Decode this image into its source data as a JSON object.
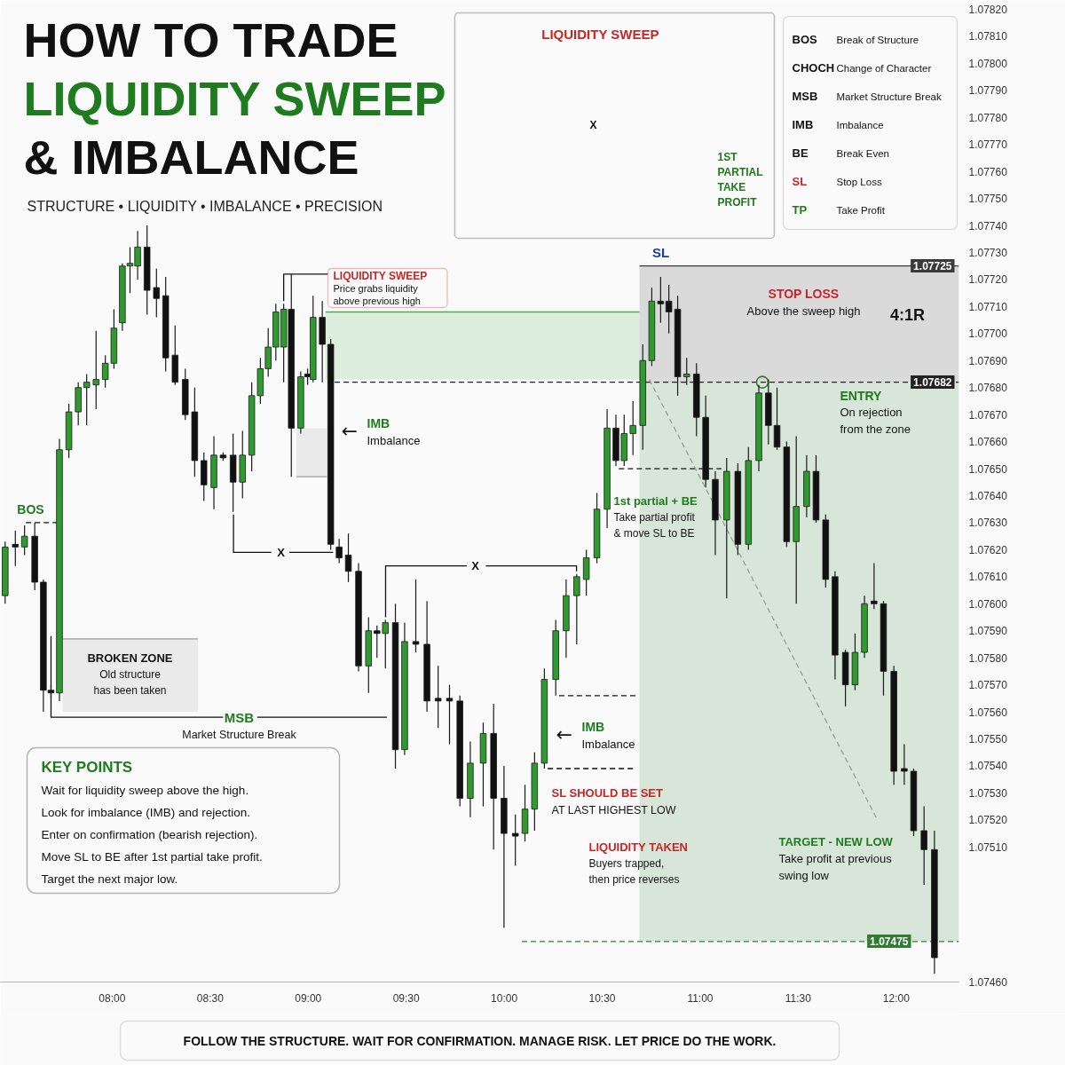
{
  "chart_data": {
    "type": "candlestick",
    "title": "HOW TO TRADE\nLIQUIDITY SWEEP\n& IMBALANCE",
    "subtitle": "STRUCTURE • LIQUIDITY • IMBALANCE • PRECISION",
    "x": [
      7.454,
      7.506,
      7.553,
      7.605,
      7.649,
      7.688,
      7.731,
      7.779,
      7.827,
      7.87,
      7.918,
      7.965,
      8.009,
      8.052,
      8.091,
      8.13,
      8.178,
      8.226,
      8.273,
      8.321,
      8.373,
      8.421,
      8.468,
      8.519,
      8.566,
      8.617,
      8.665,
      8.712,
      8.756,
      8.796,
      8.835,
      8.875,
      8.914,
      8.962,
      8.997,
      9.025,
      9.072,
      9.115,
      9.158,
      9.205,
      9.257,
      9.308,
      9.351,
      9.394,
      9.445,
      9.492,
      9.549,
      9.606,
      9.663,
      9.721,
      9.774,
      9.827,
      9.893,
      9.946,
      9.999,
      10.057,
      10.106,
      10.155,
      10.205,
      10.263,
      10.316,
      10.37,
      10.419,
      10.473,
      10.525,
      10.57,
      10.612,
      10.657,
      10.707,
      10.753,
      10.798,
      10.84,
      10.885,
      10.931,
      10.981,
      11.028,
      11.077,
      11.135,
      11.192,
      11.246,
      11.299,
      11.348,
      11.392,
      11.441,
      11.49,
      11.543,
      11.591,
      11.64,
      11.688,
      11.741,
      11.79,
      11.838,
      11.887,
      11.935,
      11.988,
      12.041,
      12.089,
      12.142,
      12.195
    ],
    "ohlc": [
      [
        1.07603,
        1.07623,
        1.076,
        1.07621
      ],
      [
        1.07622,
        1.07627,
        1.07614,
        1.07621
      ],
      [
        1.07621,
        1.07629,
        1.07618,
        1.07625
      ],
      [
        1.07625,
        1.0763,
        1.07605,
        1.07608
      ],
      [
        1.07608,
        1.07609,
        1.0756,
        1.07568
      ],
      [
        1.07568,
        1.0757,
        1.07565,
        1.07567
      ],
      [
        1.07567,
        1.07661,
        1.07564,
        1.07657
      ],
      [
        1.07657,
        1.07674,
        1.07654,
        1.07671
      ],
      [
        1.07671,
        1.07682,
        1.07666,
        1.0768
      ],
      [
        1.0768,
        1.07685,
        1.07666,
        1.07682
      ],
      [
        1.07681,
        1.07701,
        1.07672,
        1.07683
      ],
      [
        1.07683,
        1.07692,
        1.0768,
        1.07689
      ],
      [
        1.07689,
        1.07709,
        1.07687,
        1.07702
      ],
      [
        1.07704,
        1.07726,
        1.07701,
        1.07725
      ],
      [
        1.07725,
        1.07732,
        1.07715,
        1.07726
      ],
      [
        1.07725,
        1.07738,
        1.0772,
        1.07732
      ],
      [
        1.07732,
        1.0774,
        1.07707,
        1.07716
      ],
      [
        1.07717,
        1.07724,
        1.07706,
        1.07713
      ],
      [
        1.07714,
        1.07721,
        1.07686,
        1.07691
      ],
      [
        1.07692,
        1.07703,
        1.07681,
        1.07682
      ],
      [
        1.07683,
        1.07687,
        1.07668,
        1.0767
      ],
      [
        1.07671,
        1.0768,
        1.07647,
        1.07653
      ],
      [
        1.07653,
        1.07656,
        1.07638,
        1.07644
      ],
      [
        1.07643,
        1.07662,
        1.07635,
        1.07655
      ],
      [
        1.07655,
        1.07656,
        1.07653,
        1.07654
      ],
      [
        1.07655,
        1.07663,
        1.07634,
        1.07645
      ],
      [
        1.07645,
        1.07664,
        1.07639,
        1.07655
      ],
      [
        1.07655,
        1.07682,
        1.07649,
        1.07677
      ],
      [
        1.07677,
        1.07691,
        1.07674,
        1.07687
      ],
      [
        1.07687,
        1.07702,
        1.07684,
        1.07695
      ],
      [
        1.07695,
        1.07711,
        1.0769,
        1.07708
      ],
      [
        1.07695,
        1.07711,
        1.07682,
        1.07709
      ],
      [
        1.07709,
        1.07722,
        1.07647,
        1.07665
      ],
      [
        1.07665,
        1.07686,
        1.07663,
        1.07684
      ],
      [
        1.07685,
        1.07687,
        1.07681,
        1.07684
      ],
      [
        1.07683,
        1.07714,
        1.07682,
        1.07706
      ],
      [
        1.07706,
        1.07712,
        1.07682,
        1.07696
      ],
      [
        1.07696,
        1.07698,
        1.0762,
        1.07622
      ],
      [
        1.07621,
        1.07624,
        1.07615,
        1.07617
      ],
      [
        1.07618,
        1.07626,
        1.07608,
        1.07612
      ],
      [
        1.07612,
        1.07615,
        1.07575,
        1.07577
      ],
      [
        1.07577,
        1.07595,
        1.07567,
        1.0759
      ],
      [
        1.0759,
        1.07592,
        1.0758,
        1.07589
      ],
      [
        1.07589,
        1.07594,
        1.07576,
        1.07593
      ],
      [
        1.07593,
        1.076,
        1.07539,
        1.07546
      ],
      [
        1.07546,
        1.07593,
        1.07544,
        1.07586
      ],
      [
        1.07586,
        1.07609,
        1.07582,
        1.07585
      ],
      [
        1.07585,
        1.07601,
        1.0756,
        1.07564
      ],
      [
        1.07565,
        1.07577,
        1.07554,
        1.07564
      ],
      [
        1.07565,
        1.0757,
        1.07548,
        1.07564
      ],
      [
        1.07564,
        1.07566,
        1.07525,
        1.07528
      ],
      [
        1.07528,
        1.07549,
        1.07521,
        1.07541
      ],
      [
        1.07541,
        1.07556,
        1.07525,
        1.07552
      ],
      [
        1.07552,
        1.07563,
        1.07509,
        1.07528
      ],
      [
        1.07528,
        1.0754,
        1.0748,
        1.07515
      ],
      [
        1.07515,
        1.07522,
        1.07503,
        1.07514
      ],
      [
        1.07515,
        1.07533,
        1.07512,
        1.07524
      ],
      [
        1.07524,
        1.07545,
        1.07516,
        1.07541
      ],
      [
        1.07541,
        1.07576,
        1.07539,
        1.07572
      ],
      [
        1.07572,
        1.07594,
        1.07566,
        1.0759
      ],
      [
        1.0759,
        1.07609,
        1.0758,
        1.07603
      ],
      [
        1.07603,
        1.07611,
        1.07585,
        1.0761
      ],
      [
        1.07609,
        1.0762,
        1.07603,
        1.07617
      ],
      [
        1.07617,
        1.07641,
        1.07615,
        1.07635
      ],
      [
        1.07635,
        1.07672,
        1.07628,
        1.07665
      ],
      [
        1.07665,
        1.0767,
        1.07651,
        1.07653
      ],
      [
        1.07653,
        1.0767,
        1.07651,
        1.07663
      ],
      [
        1.07663,
        1.07675,
        1.07655,
        1.07666
      ],
      [
        1.07666,
        1.07696,
        1.07657,
        1.0769
      ],
      [
        1.0769,
        1.07717,
        1.07688,
        1.07712
      ],
      [
        1.07712,
        1.07721,
        1.07704,
        1.07711
      ],
      [
        1.07712,
        1.07718,
        1.077,
        1.07708
      ],
      [
        1.07709,
        1.07714,
        1.07677,
        1.07684
      ],
      [
        1.07684,
        1.07691,
        1.07681,
        1.07685
      ],
      [
        1.07685,
        1.07689,
        1.07662,
        1.07669
      ],
      [
        1.07669,
        1.07677,
        1.07643,
        1.07646
      ],
      [
        1.07646,
        1.07649,
        1.07618,
        1.07631
      ],
      [
        1.07631,
        1.07654,
        1.07602,
        1.07649
      ],
      [
        1.07649,
        1.07652,
        1.07618,
        1.07622
      ],
      [
        1.07622,
        1.07658,
        1.0762,
        1.07653
      ],
      [
        1.07653,
        1.07681,
        1.07649,
        1.07678
      ],
      [
        1.07678,
        1.07683,
        1.07659,
        1.07666
      ],
      [
        1.07666,
        1.0768,
        1.07657,
        1.07658
      ],
      [
        1.07658,
        1.0766,
        1.07621,
        1.07623
      ],
      [
        1.07623,
        1.07662,
        1.076,
        1.07636
      ],
      [
        1.07636,
        1.07655,
        1.07632,
        1.07649
      ],
      [
        1.07649,
        1.07655,
        1.0763,
        1.07631
      ],
      [
        1.07631,
        1.07633,
        1.07606,
        1.07609
      ],
      [
        1.0761,
        1.07612,
        1.07572,
        1.07581
      ],
      [
        1.07582,
        1.07583,
        1.07562,
        1.0757
      ],
      [
        1.0757,
        1.07589,
        1.07568,
        1.07582
      ],
      [
        1.07582,
        1.07603,
        1.0758,
        1.076
      ],
      [
        1.07601,
        1.07615,
        1.07598,
        1.076
      ],
      [
        1.076,
        1.07601,
        1.07566,
        1.07575
      ],
      [
        1.07575,
        1.07577,
        1.07533,
        1.07538
      ],
      [
        1.07539,
        1.07548,
        1.07533,
        1.07538
      ],
      [
        1.07538,
        1.07539,
        1.07514,
        1.07516
      ],
      [
        1.07516,
        1.07525,
        1.07496,
        1.07509
      ],
      [
        1.07509,
        1.07516,
        1.07463,
        1.07469
      ]
    ],
    "colors": [
      "#2f9b2f",
      "#111111",
      "#2f9b2f",
      "#111111",
      "#111111",
      "#111111",
      "#2f9b2f",
      "#2f9b2f",
      "#2f9b2f",
      "#2f9b2f",
      "#2f9b2f",
      "#2f9b2f",
      "#2f9b2f",
      "#2f9b2f",
      "#2f9b2f",
      "#2f9b2f",
      "#111111",
      "#111111",
      "#111111",
      "#111111",
      "#111111",
      "#111111",
      "#111111",
      "#2f9b2f",
      "#111111",
      "#111111",
      "#2f9b2f",
      "#2f9b2f",
      "#2f9b2f",
      "#2f9b2f",
      "#2f9b2f",
      "#2f9b2f",
      "#111111",
      "#2f9b2f",
      "#111111",
      "#2f9b2f",
      "#111111",
      "#111111",
      "#111111",
      "#111111",
      "#111111",
      "#2f9b2f",
      "#111111",
      "#2f9b2f",
      "#111111",
      "#2f9b2f",
      "#111111",
      "#111111",
      "#111111",
      "#111111",
      "#111111",
      "#2f9b2f",
      "#2f9b2f",
      "#111111",
      "#111111",
      "#111111",
      "#2f9b2f",
      "#2f9b2f",
      "#2f9b2f",
      "#2f9b2f",
      "#2f9b2f",
      "#2f9b2f",
      "#2f9b2f",
      "#2f9b2f",
      "#2f9b2f",
      "#111111",
      "#2f9b2f",
      "#2f9b2f",
      "#2f9b2f",
      "#2f9b2f",
      "#111111",
      "#111111",
      "#111111",
      "#2f9b2f",
      "#111111",
      "#111111",
      "#111111",
      "#2f9b2f",
      "#111111",
      "#2f9b2f",
      "#2f9b2f",
      "#111111",
      "#111111",
      "#111111",
      "#2f9b2f",
      "#2f9b2f",
      "#111111",
      "#111111",
      "#111111",
      "#111111",
      "#2f9b2f",
      "#2f9b2f",
      "#111111",
      "#111111",
      "#111111",
      "#111111",
      "#111111",
      "#111111",
      "#111111"
    ],
    "xlim": [
      7.43,
      12.32
    ],
    "ylim": [
      1.0746,
      1.0782
    ],
    "xticks": [
      {
        "value": 8,
        "label": "08:00"
      },
      {
        "value": 8.5,
        "label": "08:30"
      },
      {
        "value": 9,
        "label": "09:00"
      },
      {
        "value": 9.5,
        "label": "09:30"
      },
      {
        "value": 10,
        "label": "10:00"
      },
      {
        "value": 10.5,
        "label": "10:30"
      },
      {
        "value": 11,
        "label": "11:00"
      },
      {
        "value": 11.5,
        "label": "11:30"
      },
      {
        "value": 12,
        "label": "12:00"
      }
    ],
    "yticks": [
      {
        "value": 1.0746,
        "label": "1.07460"
      },
      {
        "value": 1.0751,
        "label": "1.07510"
      },
      {
        "value": 1.0752,
        "label": "1.07520"
      },
      {
        "value": 1.0753,
        "label": "1.07530"
      },
      {
        "value": 1.0754,
        "label": "1.07540"
      },
      {
        "value": 1.0755,
        "label": "1.07550"
      },
      {
        "value": 1.0756,
        "label": "1.07560"
      },
      {
        "value": 1.0757,
        "label": "1.07570"
      },
      {
        "value": 1.0758,
        "label": "1.07580"
      },
      {
        "value": 1.0759,
        "label": "1.07590"
      },
      {
        "value": 1.076,
        "label": "1.07600"
      },
      {
        "value": 1.0761,
        "label": "1.07610"
      },
      {
        "value": 1.0762,
        "label": "1.07620"
      },
      {
        "value": 1.0763,
        "label": "1.07630"
      },
      {
        "value": 1.0764,
        "label": "1.07640"
      },
      {
        "value": 1.0765,
        "label": "1.07650"
      },
      {
        "value": 1.0766,
        "label": "1.07660"
      },
      {
        "value": 1.0767,
        "label": "1.07670"
      },
      {
        "value": 1.0768,
        "label": "1.07680"
      },
      {
        "value": 1.0769,
        "label": "1.07690"
      },
      {
        "value": 1.077,
        "label": "1.07700"
      },
      {
        "value": 1.0771,
        "label": "1.07710"
      },
      {
        "value": 1.0772,
        "label": "1.07720"
      },
      {
        "value": 1.0773,
        "label": "1.07730"
      },
      {
        "value": 1.0774,
        "label": "1.07740"
      },
      {
        "value": 1.0775,
        "label": "1.07750"
      },
      {
        "value": 1.0776,
        "label": "1.07760"
      },
      {
        "value": 1.0777,
        "label": "1.07770"
      },
      {
        "value": 1.0778,
        "label": "1.07780"
      },
      {
        "value": 1.0779,
        "label": "1.07790"
      },
      {
        "value": 1.078,
        "label": "1.07800"
      },
      {
        "value": 1.0781,
        "label": "1.07810"
      },
      {
        "value": 1.0782,
        "label": "1.07820"
      }
    ],
    "series": [
      {
        "type": "line",
        "x": [
          9.088,
          10.69
        ],
        "values": [
          1.07708,
          1.07708
        ],
        "lower": [
          1.07683,
          1.07683
        ],
        "upper": [
          1.07708,
          1.07708
        ],
        "color": "#4caf50"
      },
      {
        "type": "line",
        "x": [
          10.69,
          12.32
        ],
        "values": [
          1.07725,
          1.07725
        ],
        "lower": [
          1.07682,
          1.07682
        ],
        "upper": [
          1.07725,
          1.07725
        ],
        "color": "#3a3a3a"
      },
      {
        "type": "line",
        "x": [
          9.135,
          12.32
        ],
        "values": [
          1.07682,
          1.07682
        ],
        "color": "#222222",
        "line_style": "dashed"
      },
      {
        "type": "line",
        "x": [
          10.09,
          10.69,
          12.32
        ],
        "values": [
          1.07475,
          1.07475,
          1.07475
        ],
        "lower": [
          null,
          1.07475,
          1.07475
        ],
        "upper": [
          null,
          1.07682,
          1.07682
        ],
        "color": "#2e7d32",
        "line_style": "dashed"
      },
      {
        "type": "line",
        "x": [
          8.94,
          9.095
        ],
        "values": [
          1.07647,
          1.07647
        ],
        "lower": [
          1.07647,
          1.07647
        ],
        "upper": [
          1.07665,
          1.07665
        ],
        "color": "#9e9e9e"
      },
      {
        "type": "line",
        "x": [
          7.747,
          8.438
        ],
        "values": [
          1.07587,
          1.07587
        ],
        "lower": [
          1.0756,
          1.0756
        ],
        "upper": [
          1.07587,
          1.07587
        ],
        "color": "#9e9e9e"
      },
      {
        "type": "line",
        "x": [
          7.56,
          7.727
        ],
        "values": [
          1.0763,
          1.0763
        ],
        "color": "#111111",
        "line_style": "dashed"
      },
      {
        "type": "line",
        "x": [
          7.688,
          7.688,
          8.566,
          8.65,
          8.74,
          9.402
        ],
        "values": [
          1.07588,
          1.07558,
          1.07558,
          null,
          1.07558,
          1.07558
        ],
        "color": "#111111"
      },
      {
        "type": "line",
        "x": [
          8.619,
          8.619,
          8.812,
          8.859,
          8.903,
          9.127
        ],
        "values": [
          1.07633,
          1.07619,
          1.07619,
          null,
          1.07619,
          1.07619
        ],
        "color": "#111111"
      },
      {
        "type": "line",
        "x": [
          9.395,
          9.395,
          9.809,
          9.853,
          9.906,
          10.369,
          10.369
        ],
        "values": [
          1.07595,
          1.07614,
          1.07614,
          null,
          1.07614,
          1.07614,
          1.07612
        ],
        "color": "#111111"
      },
      {
        "type": "line",
        "x": [
          8.875,
          8.875,
          9.1
        ],
        "values": [
          1.07712,
          1.07722,
          1.07722
        ],
        "color": "#111111"
      },
      {
        "type": "line",
        "x": [
          10.585,
          11.108
        ],
        "values": [
          1.0765,
          1.0765
        ],
        "color": "#111111",
        "line_style": "dashed"
      },
      {
        "type": "line",
        "x": [
          10.28,
          10.674
        ],
        "values": [
          1.07566,
          1.07566
        ],
        "color": "#111111",
        "line_style": "dashed"
      },
      {
        "type": "line",
        "x": [
          10.222,
          10.674
        ],
        "values": [
          1.07539,
          1.07539
        ],
        "color": "#111111",
        "line_style": "dashed"
      },
      {
        "type": "line",
        "x": [
          10.74,
          11.904
        ],
        "values": [
          1.07683,
          1.0752
        ],
        "color": "#9a9a9a",
        "line_style": "dashed"
      },
      {
        "type": "scatter",
        "x": [
          11.317
        ],
        "values": [
          1.07682
        ],
        "marker": "circle",
        "color": "#2e7d32"
      }
    ],
    "annotations": [
      "BOS",
      "LIQUIDITY SWEEP\nPrice grabs liquidity\nabove previous high",
      "←",
      "IMB\nImbalance",
      "X",
      "X",
      "MSB\nMarket Structure Break",
      "BROKEN ZONE\nOld structure\nhas been taken",
      "1st partial + BE\nTake partial profit\n& move SL to BE",
      "SL",
      "STOP LOSS\nAbove the sweep high",
      "4:1R",
      "ENTRY\nOn rejection\nfrom the zone",
      "←",
      "IMB\nImbalance",
      "SL SHOULD BE SET\nAT LAST HIGHEST LOW",
      "LIQUIDITY TAKEN\nBuyers trapped,\nthen price reverses",
      "TARGET - NEW LOW\nTake profit at previous\nswing low",
      "LIQUIDITY SWEEP",
      "X",
      "1ST\nPARTIAL\nTAKE\nPROFIT",
      "BOS Break of Structure\nCHOCH Change of Character\nMSB Market Structure Break\nIMB Imbalance\nBE Break Even\nSL Stop Loss\nTP Take Profit",
      "KEY POINTS\nWait for liquidity sweep above the high.\nLook for imbalance (IMB) and rejection.\nEnter on confirmation (bearish rejection).\nMove SL to BE after 1st partial take profit.\nTarget the next major low.",
      "FOLLOW THE STRUCTURE. WAIT FOR CONFIRMATION. MANAGE RISK. LET PRICE DO THE WORK.",
      "1.07725",
      "1.07682",
      "1.07475"
    ]
  }
}
